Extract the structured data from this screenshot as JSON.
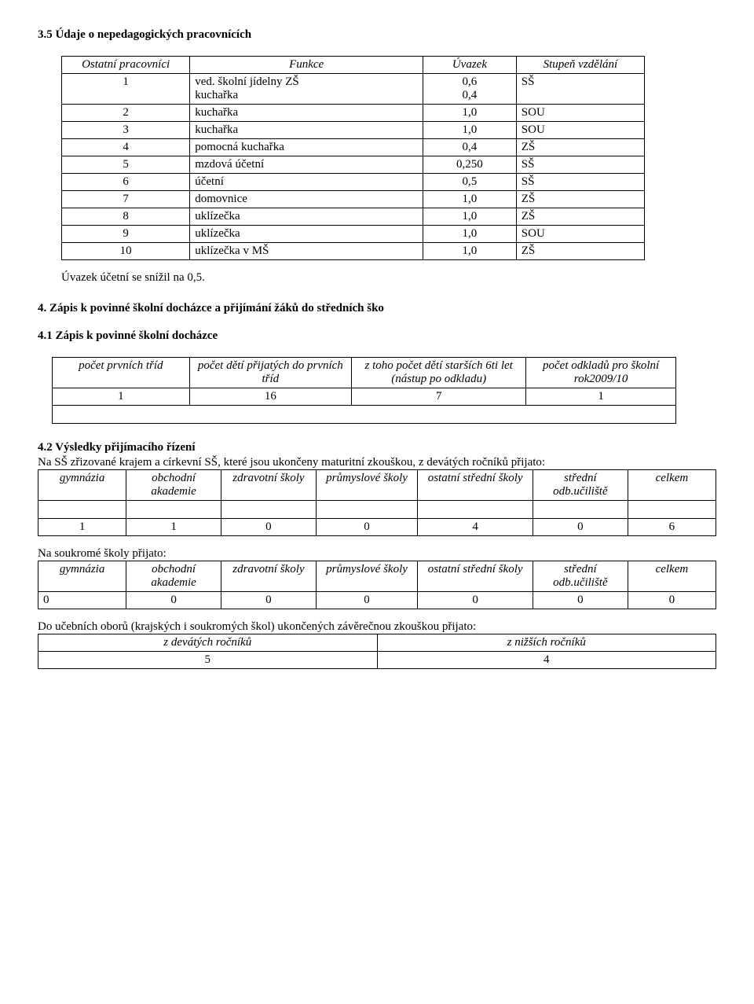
{
  "s35": {
    "title": "3.5 Údaje o nepedagogických pracovnících",
    "headers": [
      "Ostatní pracovníci",
      "Funkce",
      "Úvazek",
      "Stupeň vzdělání"
    ],
    "rows": [
      [
        "1",
        "ved. školní jídelny ZŠ\nkuchařka",
        "0,6\n0,4",
        "SŠ"
      ],
      [
        "2",
        "kuchařka",
        "1,0",
        "SOU"
      ],
      [
        "3",
        "kuchařka",
        "1,0",
        "SOU"
      ],
      [
        "4",
        "pomocná kuchařka",
        "0,4",
        "ZŠ"
      ],
      [
        "5",
        "mzdová účetní",
        "0,250",
        "SŠ"
      ],
      [
        "6",
        "účetní",
        "0,5",
        "SŠ"
      ],
      [
        "7",
        "domovnice",
        "1,0",
        "ZŠ"
      ],
      [
        "8",
        "uklízečka",
        "1,0",
        "ZŠ"
      ],
      [
        "9",
        "uklízečka",
        "1,0",
        "SOU"
      ],
      [
        "10",
        "uklízečka v MŠ",
        "1,0",
        "ZŠ"
      ]
    ],
    "note": "Úvazek účetní se snížil na 0,5.",
    "col_widths": [
      "22%",
      "40%",
      "16%",
      "22%"
    ]
  },
  "s4": {
    "title": "4. Zápis k povinné školní docházce a přijímání žáků do středních ško"
  },
  "s41": {
    "title": "4.1 Zápis k povinné školní docházce",
    "headers": [
      "počet prvních tříd",
      "počet dětí přijatých do prvních tříd",
      "z toho počet dětí starších 6ti let (nástup po odkladu)",
      "počet odkladů pro školní rok2009/10"
    ],
    "row": [
      "1",
      "16",
      "7",
      "1"
    ],
    "col_widths": [
      "22%",
      "26%",
      "28%",
      "24%"
    ]
  },
  "s42": {
    "title": "4.2 Výsledky přijímacího řízení",
    "intro": "Na SŠ zřizované krajem a církevní SŠ, které jsou ukončeny maturitní zkouškou, z devátých ročníků přijato:",
    "headers": [
      "gymnázia",
      "obchodní akademie",
      "zdravotní školy",
      "průmyslové školy",
      "ostatní střední školy",
      "střední odb.učiliště",
      "celkem"
    ],
    "row1": [
      "1",
      "1",
      "0",
      "0",
      "4",
      "0",
      "6"
    ],
    "soukrome_label": "Na soukromé školy přijato:",
    "row2": [
      "0",
      "0",
      "0",
      "0",
      "0",
      "0",
      "0"
    ],
    "ucebni_intro": "Do učebních oborů (krajských i soukromých škol) ukončených závěrečnou zkouškou přijato:",
    "ucebni_headers": [
      "z devátých ročníků",
      "z nižších ročníků"
    ],
    "ucebni_row": [
      "5",
      "4"
    ],
    "col_widths": [
      "13%",
      "14%",
      "14%",
      "15%",
      "17%",
      "14%",
      "13%"
    ]
  }
}
